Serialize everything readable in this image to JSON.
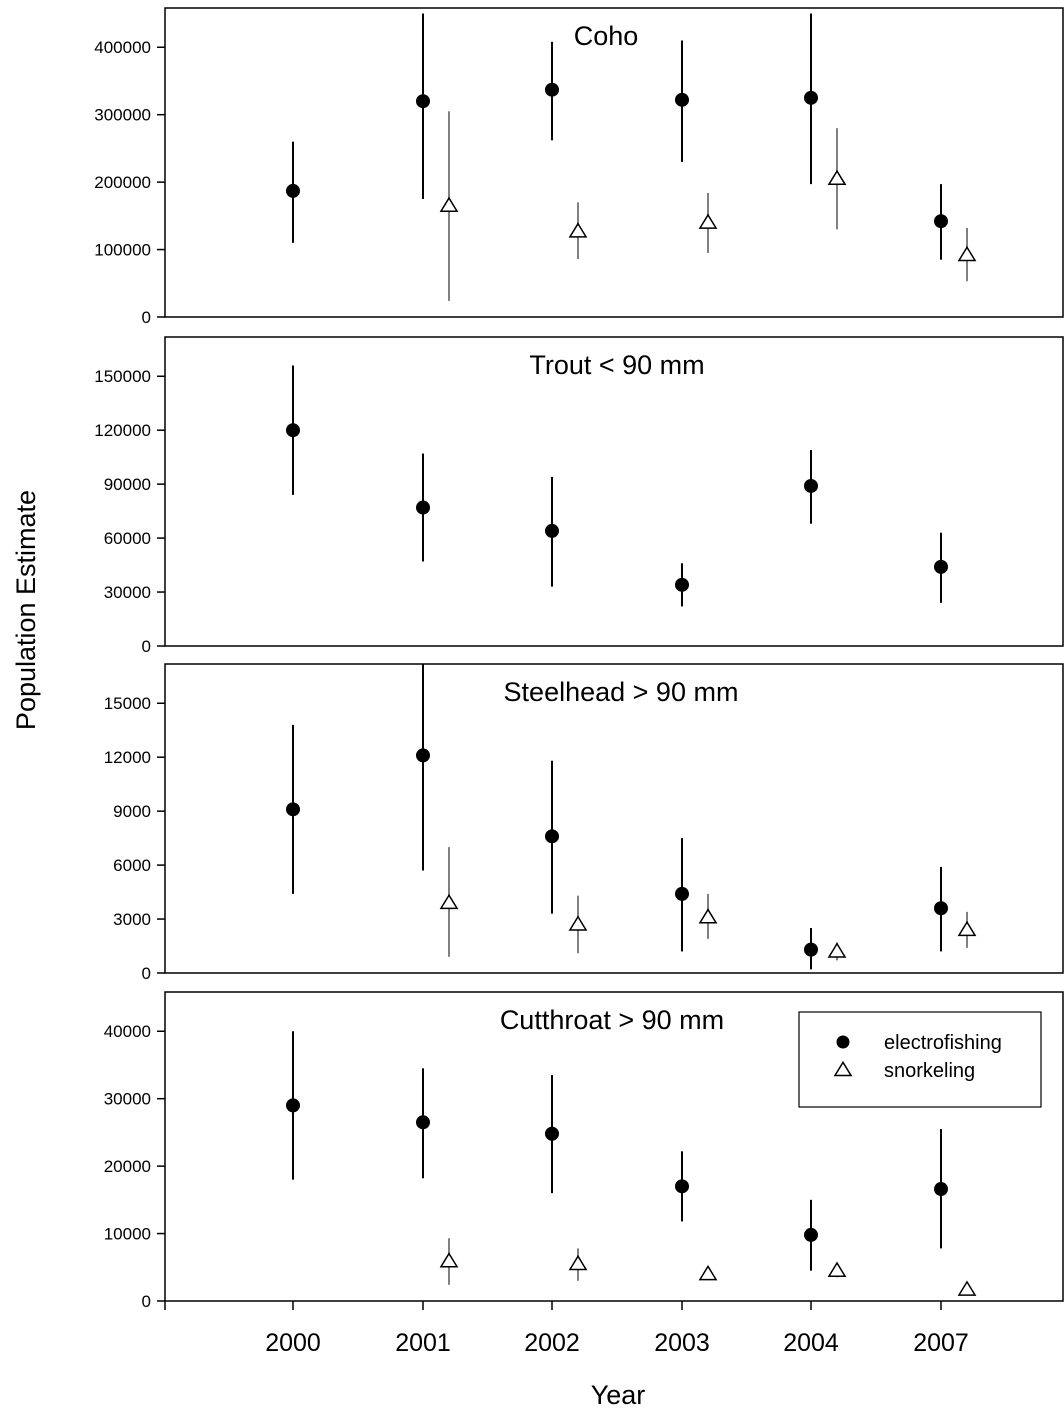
{
  "chart_data": {
    "type": "scatter",
    "ylabel": "Population Estimate",
    "xlabel": "Year",
    "categories": [
      "2000",
      "2001",
      "2002",
      "2003",
      "2004",
      "2007"
    ],
    "legend": {
      "placement": "top-right of bottom panel",
      "items": [
        {
          "label": "electrofishing",
          "marker": "filled-circle"
        },
        {
          "label": "snorkeling",
          "marker": "open-triangle"
        }
      ]
    },
    "colors": {
      "electrofishing": "#000000",
      "snorkeling_bar": "#808080"
    },
    "panels": [
      {
        "title": "Coho",
        "ylim": [
          0,
          400000
        ],
        "yticks": [
          0,
          100000,
          200000,
          300000,
          400000
        ],
        "series": [
          {
            "name": "electrofishing",
            "points": [
              {
                "year": "2000",
                "y": 187000,
                "lo": 110000,
                "hi": 260000
              },
              {
                "year": "2001",
                "y": 320000,
                "lo": 175000,
                "hi": 450000
              },
              {
                "year": "2002",
                "y": 337000,
                "lo": 262000,
                "hi": 408000
              },
              {
                "year": "2003",
                "y": 322000,
                "lo": 230000,
                "hi": 410000
              },
              {
                "year": "2004",
                "y": 325000,
                "lo": 197000,
                "hi": 450000
              },
              {
                "year": "2007",
                "y": 142000,
                "lo": 85000,
                "hi": 197000
              }
            ]
          },
          {
            "name": "snorkeling",
            "points": [
              {
                "year": "2001",
                "y": 165000,
                "lo": 24000,
                "hi": 305000
              },
              {
                "year": "2002",
                "y": 127000,
                "lo": 86000,
                "hi": 170000
              },
              {
                "year": "2003",
                "y": 140000,
                "lo": 95000,
                "hi": 184000
              },
              {
                "year": "2004",
                "y": 205000,
                "lo": 130000,
                "hi": 280000
              },
              {
                "year": "2007",
                "y": 92000,
                "lo": 53000,
                "hi": 132000
              }
            ]
          }
        ]
      },
      {
        "title": "Trout < 90 mm",
        "ylim": [
          0,
          150000
        ],
        "yticks": [
          0,
          30000,
          60000,
          90000,
          120000,
          150000
        ],
        "series": [
          {
            "name": "electrofishing",
            "points": [
              {
                "year": "2000",
                "y": 120000,
                "lo": 84000,
                "hi": 156000
              },
              {
                "year": "2001",
                "y": 77000,
                "lo": 47000,
                "hi": 107000
              },
              {
                "year": "2002",
                "y": 64000,
                "lo": 33000,
                "hi": 94000
              },
              {
                "year": "2003",
                "y": 34000,
                "lo": 22000,
                "hi": 46000
              },
              {
                "year": "2004",
                "y": 89000,
                "lo": 68000,
                "hi": 109000
              },
              {
                "year": "2007",
                "y": 44000,
                "lo": 24000,
                "hi": 63000
              }
            ]
          },
          {
            "name": "snorkeling",
            "points": []
          }
        ]
      },
      {
        "title": "Steelhead > 90 mm",
        "ylim": [
          0,
          15000
        ],
        "yticks": [
          0,
          3000,
          6000,
          9000,
          12000,
          15000
        ],
        "series": [
          {
            "name": "electrofishing",
            "points": [
              {
                "year": "2000",
                "y": 9100,
                "lo": 4400,
                "hi": 13800
              },
              {
                "year": "2001",
                "y": 12100,
                "lo": 5700,
                "hi": 18000
              },
              {
                "year": "2002",
                "y": 7600,
                "lo": 3300,
                "hi": 11800
              },
              {
                "year": "2003",
                "y": 4400,
                "lo": 1200,
                "hi": 7500
              },
              {
                "year": "2004",
                "y": 1300,
                "lo": 200,
                "hi": 2500
              },
              {
                "year": "2007",
                "y": 3600,
                "lo": 1200,
                "hi": 5900
              }
            ]
          },
          {
            "name": "snorkeling",
            "points": [
              {
                "year": "2001",
                "y": 3900,
                "lo": 900,
                "hi": 7000
              },
              {
                "year": "2002",
                "y": 2700,
                "lo": 1100,
                "hi": 4300
              },
              {
                "year": "2003",
                "y": 3100,
                "lo": 1900,
                "hi": 4400
              },
              {
                "year": "2004",
                "y": 1200,
                "lo": 700,
                "hi": 1700
              },
              {
                "year": "2007",
                "y": 2400,
                "lo": 1400,
                "hi": 3400
              }
            ]
          }
        ]
      },
      {
        "title": "Cutthroat > 90 mm",
        "ylim": [
          0,
          40000
        ],
        "yticks": [
          0,
          10000,
          20000,
          30000,
          40000
        ],
        "series": [
          {
            "name": "electrofishing",
            "points": [
              {
                "year": "2000",
                "y": 29000,
                "lo": 18000,
                "hi": 40000
              },
              {
                "year": "2001",
                "y": 26500,
                "lo": 18200,
                "hi": 34500
              },
              {
                "year": "2002",
                "y": 24800,
                "lo": 16000,
                "hi": 33500
              },
              {
                "year": "2003",
                "y": 17000,
                "lo": 11800,
                "hi": 22200
              },
              {
                "year": "2004",
                "y": 9800,
                "lo": 4500,
                "hi": 15000
              },
              {
                "year": "2007",
                "y": 16600,
                "lo": 7800,
                "hi": 25500
              }
            ]
          },
          {
            "name": "snorkeling",
            "points": [
              {
                "year": "2001",
                "y": 5900,
                "lo": 2400,
                "hi": 9300
              },
              {
                "year": "2002",
                "y": 5500,
                "lo": 3000,
                "hi": 7800
              },
              {
                "year": "2003",
                "y": 4000,
                "lo": 3200,
                "hi": 4700
              },
              {
                "year": "2004",
                "y": 4500,
                "lo": 3500,
                "hi": 5400
              },
              {
                "year": "2007",
                "y": 1700,
                "lo": 1400,
                "hi": 2000
              }
            ]
          }
        ]
      }
    ]
  }
}
